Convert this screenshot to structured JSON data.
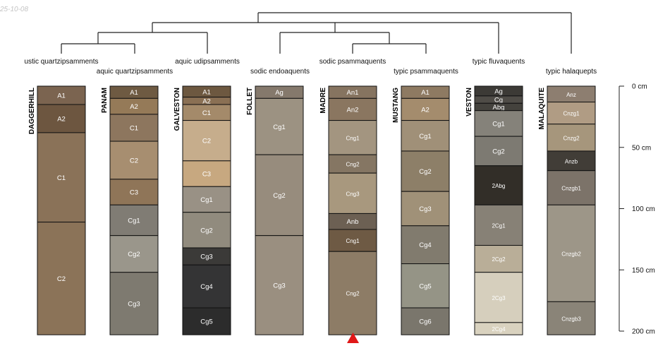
{
  "stamp": "25-10-08",
  "depth_axis": {
    "unit": "cm",
    "max": 200,
    "ticks": [
      "0 cm",
      "50 cm",
      "100 cm",
      "150 cm",
      "200 cm"
    ]
  },
  "taxa": [
    "ustic quartzipsamments",
    "aquic quartzipsamments",
    "aquic udipsamments",
    "sodic endoaquents",
    "sodic psammaquents",
    "typic psammaquents",
    "typic fluvaquents",
    "typic halaquepts"
  ],
  "profiles": [
    {
      "name": "DAGGERHILL",
      "horizons": [
        {
          "name": "A1",
          "top": 0,
          "bottom": 15,
          "color": "#7b6450"
        },
        {
          "name": "A2",
          "top": 15,
          "bottom": 38,
          "color": "#6d5640"
        },
        {
          "name": "C1",
          "top": 38,
          "bottom": 111,
          "color": "#8a7258"
        },
        {
          "name": "C2",
          "top": 111,
          "bottom": 203,
          "color": "#8b7358"
        }
      ]
    },
    {
      "name": "PANAM",
      "horizons": [
        {
          "name": "A1",
          "top": 0,
          "bottom": 10,
          "color": "#6e5a42"
        },
        {
          "name": "A2",
          "top": 10,
          "bottom": 23,
          "color": "#957a58"
        },
        {
          "name": "C1",
          "top": 23,
          "bottom": 45,
          "color": "#8d765e"
        },
        {
          "name": "C2",
          "top": 45,
          "bottom": 76,
          "color": "#a78e70"
        },
        {
          "name": "C3",
          "top": 76,
          "bottom": 97,
          "color": "#8f7558"
        },
        {
          "name": "Cg1",
          "top": 97,
          "bottom": 122,
          "color": "#807c74"
        },
        {
          "name": "Cg2",
          "top": 122,
          "bottom": 152,
          "color": "#9a968b"
        },
        {
          "name": "Cg3",
          "top": 152,
          "bottom": 203,
          "color": "#7e7a70"
        }
      ]
    },
    {
      "name": "GALVESTON",
      "horizons": [
        {
          "name": "A1",
          "top": 0,
          "bottom": 9,
          "color": "#6d5840"
        },
        {
          "name": "A2",
          "top": 9,
          "bottom": 15,
          "color": "#8a7054"
        },
        {
          "name": "C1",
          "top": 15,
          "bottom": 28,
          "color": "#a48a6a"
        },
        {
          "name": "C2",
          "top": 28,
          "bottom": 61,
          "color": "#c6ad8c"
        },
        {
          "name": "C3",
          "top": 61,
          "bottom": 82,
          "color": "#c7a880"
        },
        {
          "name": "Cg1",
          "top": 82,
          "bottom": 103,
          "color": "#999185"
        },
        {
          "name": "Cg2",
          "top": 103,
          "bottom": 132,
          "color": "#918b7e"
        },
        {
          "name": "Cg3",
          "top": 132,
          "bottom": 146,
          "color": "#3b3a38"
        },
        {
          "name": "Cg4",
          "top": 146,
          "bottom": 181,
          "color": "#343435"
        },
        {
          "name": "Cg5",
          "top": 181,
          "bottom": 203,
          "color": "#2c2c2c"
        }
      ]
    },
    {
      "name": "FOLLET",
      "horizons": [
        {
          "name": "Ag",
          "top": 0,
          "bottom": 10,
          "color": "#85796c"
        },
        {
          "name": "Cg1",
          "top": 10,
          "bottom": 56,
          "color": "#9c9282"
        },
        {
          "name": "Cg2",
          "top": 56,
          "bottom": 122,
          "color": "#978c7d"
        },
        {
          "name": "Cg3",
          "top": 122,
          "bottom": 203,
          "color": "#9a8f80"
        }
      ]
    },
    {
      "name": "MADRE",
      "horizons": [
        {
          "name": "An1",
          "top": 0,
          "bottom": 10,
          "color": "#867460"
        },
        {
          "name": "An2",
          "top": 10,
          "bottom": 28,
          "color": "#8a7660"
        },
        {
          "name": "Cng1",
          "top": 28,
          "bottom": 56,
          "color": "#a39580"
        },
        {
          "name": "Cng2",
          "top": 56,
          "bottom": 71,
          "color": "#857663"
        },
        {
          "name": "Cng3",
          "top": 71,
          "bottom": 104,
          "color": "#a8987e"
        },
        {
          "name": "Anb",
          "top": 104,
          "bottom": 117,
          "color": "#6c6053"
        },
        {
          "name": "Cng1",
          "top": 117,
          "bottom": 135,
          "color": "#6e5a44"
        },
        {
          "name": "Cng2",
          "top": 135,
          "bottom": 203,
          "color": "#8d7c66"
        }
      ]
    },
    {
      "name": "MUSTANG",
      "horizons": [
        {
          "name": "A1",
          "top": 0,
          "bottom": 10,
          "color": "#8e7a62"
        },
        {
          "name": "A2",
          "top": 10,
          "bottom": 28,
          "color": "#a48c6d"
        },
        {
          "name": "Cg1",
          "top": 28,
          "bottom": 53,
          "color": "#a09078"
        },
        {
          "name": "Cg2",
          "top": 53,
          "bottom": 86,
          "color": "#8d7f68"
        },
        {
          "name": "Cg3",
          "top": 86,
          "bottom": 114,
          "color": "#a09178"
        },
        {
          "name": "Cg4",
          "top": 114,
          "bottom": 145,
          "color": "#817b6e"
        },
        {
          "name": "Cg5",
          "top": 145,
          "bottom": 181,
          "color": "#959486"
        },
        {
          "name": "Cg6",
          "top": 181,
          "bottom": 203,
          "color": "#7a766c"
        }
      ]
    },
    {
      "name": "VESTON",
      "horizons": [
        {
          "name": "Ag",
          "top": 0,
          "bottom": 8,
          "color": "#3c3a36"
        },
        {
          "name": "Cg",
          "top": 8,
          "bottom": 14,
          "color": "#4f4c47"
        },
        {
          "name": "Abg",
          "top": 14,
          "bottom": 20,
          "color": "#44423d"
        },
        {
          "name": "Cg1",
          "top": 20,
          "bottom": 41,
          "color": "#85827a"
        },
        {
          "name": "Cg2",
          "top": 41,
          "bottom": 65,
          "color": "#7d7a72"
        },
        {
          "name": "2Abg",
          "top": 65,
          "bottom": 97,
          "color": "#322e28"
        },
        {
          "name": "2Cg1",
          "top": 97,
          "bottom": 130,
          "color": "#878176"
        },
        {
          "name": "2Cg2",
          "top": 130,
          "bottom": 152,
          "color": "#b9ae98"
        },
        {
          "name": "2Cg3",
          "top": 152,
          "bottom": 193,
          "color": "#d6cfbd"
        },
        {
          "name": "2Cg4",
          "top": 193,
          "bottom": 203,
          "color": "#d9d2bf"
        }
      ]
    },
    {
      "name": "MALAQUITE",
      "horizons": [
        {
          "name": "Anz",
          "top": 0,
          "bottom": 13,
          "color": "#8d7e70"
        },
        {
          "name": "Cnzg1",
          "top": 13,
          "bottom": 31,
          "color": "#b09c84"
        },
        {
          "name": "Cnzg2",
          "top": 31,
          "bottom": 53,
          "color": "#a6967c"
        },
        {
          "name": "Anzb",
          "top": 53,
          "bottom": 69,
          "color": "#413d37"
        },
        {
          "name": "Cnzgb1",
          "top": 69,
          "bottom": 97,
          "color": "#7c7369"
        },
        {
          "name": "Cnzgb2",
          "top": 97,
          "bottom": 176,
          "color": "#9d9688"
        },
        {
          "name": "Cnzgb3",
          "top": 176,
          "bottom": 203,
          "color": "#8a8478"
        }
      ]
    }
  ]
}
